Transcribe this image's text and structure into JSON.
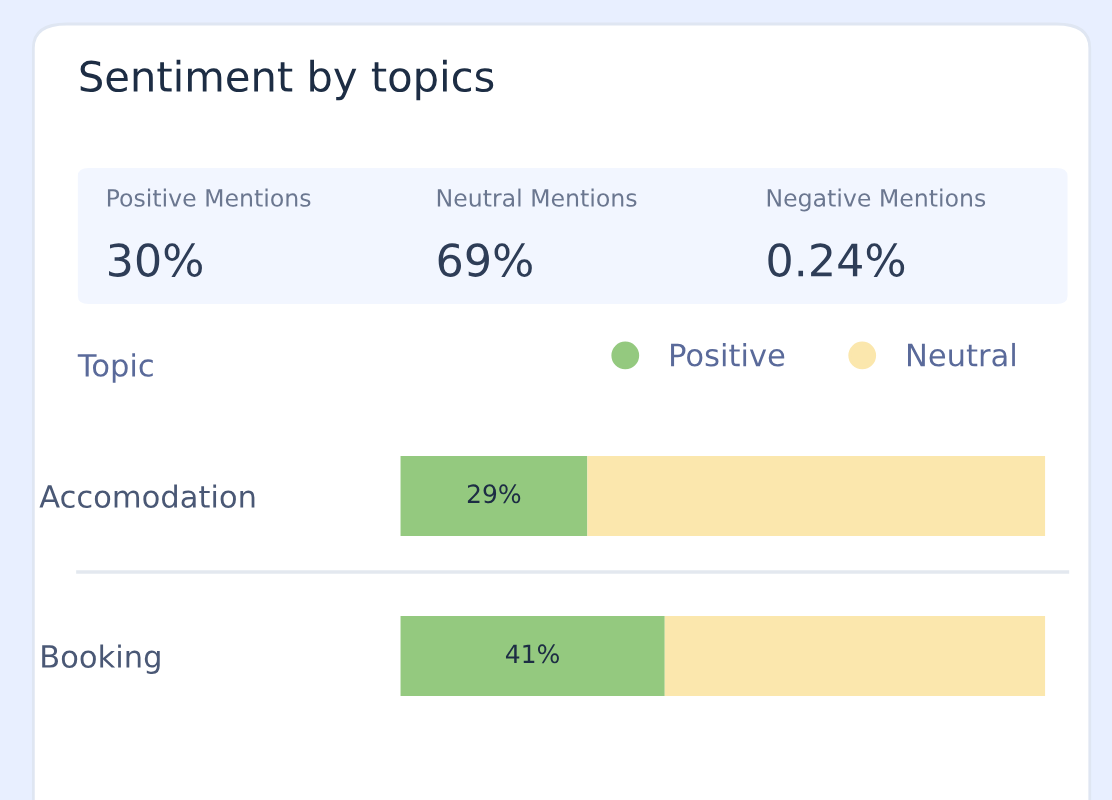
{
  "chart_data": {
    "type": "bar",
    "orientation": "horizontal",
    "stacked": true,
    "title": "Sentiment by topics",
    "annotations": [
      "Positive Mentions",
      "30%",
      "Neutral Mentions",
      "69%",
      "Negative Mentions",
      "0.24%"
    ],
    "ylabel": "Topic",
    "categories": [
      "Accomodation",
      "Booking"
    ],
    "series": [
      {
        "name": "Positive",
        "color": "#94c97f",
        "values": [
          29,
          41
        ],
        "value_labels": [
          "29%",
          "41%"
        ]
      },
      {
        "name": "Neutral",
        "color": "#fbe7ad",
        "values": [
          71,
          59
        ],
        "value_labels": [
          null,
          null
        ]
      }
    ],
    "tick_labels": "y",
    "legend": "top right",
    "grid": false
  }
}
